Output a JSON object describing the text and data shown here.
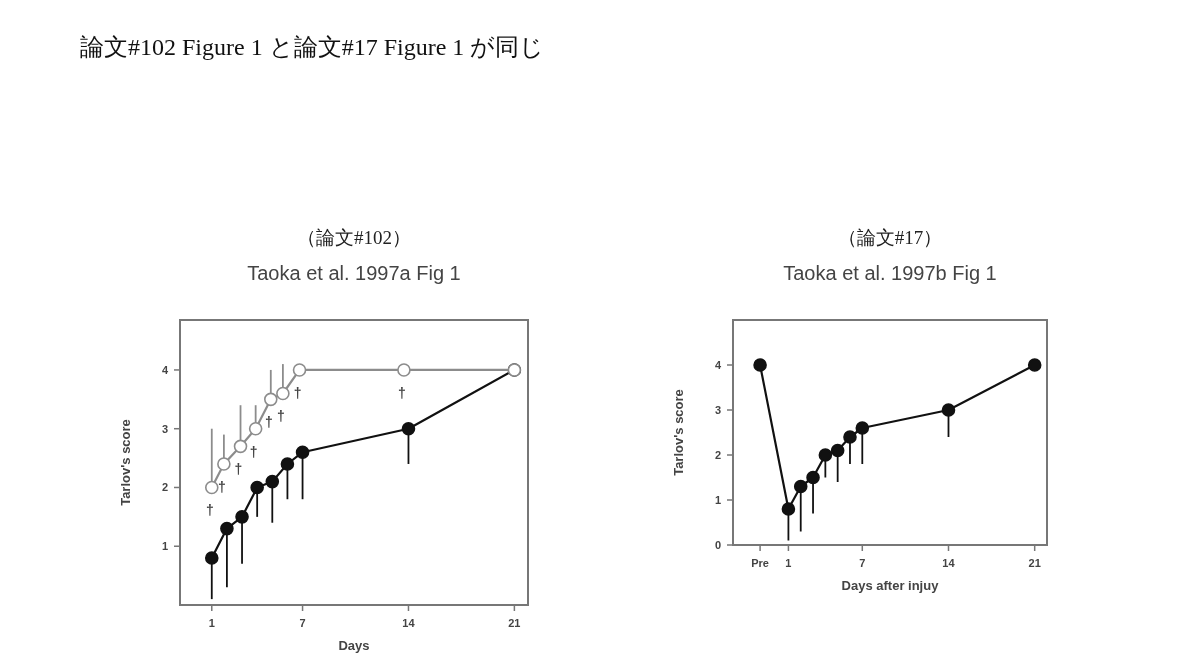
{
  "chart_data": [
    {
      "type": "line",
      "title": "Taoka et al. 1997a Fig 1",
      "subtitle": "（論文#102）",
      "xlabel": "Days",
      "ylabel": "Tarlov's score",
      "xlim": [
        -1.1,
        21.9
      ],
      "ylim": [
        0,
        4.85
      ],
      "xticks": [
        1,
        7,
        14,
        21
      ],
      "yticks": [
        1,
        2,
        3,
        4
      ],
      "marker": "circle",
      "series": [
        {
          "color": "#111111",
          "x": [
            1,
            2,
            3,
            4,
            5,
            6,
            7,
            14,
            21
          ],
          "values": [
            0.8,
            1.3,
            1.5,
            2.0,
            2.1,
            2.4,
            2.6,
            3.0,
            4.0
          ],
          "errors": [
            [
              0.1,
              0.8
            ],
            [
              0.3,
              1.3
            ],
            [
              0.7,
              1.5
            ],
            [
              1.5,
              2.0
            ],
            [
              1.4,
              2.1
            ],
            [
              1.8,
              2.4
            ],
            [
              1.8,
              2.6
            ],
            [
              2.4,
              3.0
            ],
            null
          ]
        },
        {
          "color": "#ffffff",
          "x": [
            1,
            1.8,
            2.9,
            3.9,
            4.9,
            5.7,
            6.8,
            13.7,
            21
          ],
          "values": [
            2.0,
            2.4,
            2.7,
            3.0,
            3.5,
            3.6,
            4.0,
            4.0,
            4.0
          ],
          "errors": [
            [
              2.0,
              3.0
            ],
            [
              2.4,
              2.9
            ],
            [
              2.7,
              3.4
            ],
            [
              3.0,
              3.4
            ],
            [
              3.5,
              4.0
            ],
            [
              3.6,
              4.1
            ],
            null,
            null,
            null
          ]
        }
      ],
      "annotations": [
        "論文#102 Figure 1 と論文#17 Figure 1 が同じ",
        {
          "text": "†",
          "x": 1,
          "y": 2.0
        },
        {
          "text": "†",
          "x": 1.8,
          "y": 2.4
        },
        {
          "text": "†",
          "x": 2.9,
          "y": 2.7
        },
        {
          "text": "†",
          "x": 3.9,
          "y": 3.0
        },
        {
          "text": "†",
          "x": 4.9,
          "y": 3.5
        },
        {
          "text": "†",
          "x": 5.7,
          "y": 3.6
        },
        {
          "text": "†",
          "x": 6.8,
          "y": 4.0
        },
        {
          "text": "†",
          "x": 13.7,
          "y": 4.0
        }
      ]
    },
    {
      "type": "line",
      "title": "Taoka et al. 1997b Fig 1",
      "subtitle": "（論文#17）",
      "xlabel": "Days after injuy",
      "ylabel": "Tarlov's score",
      "xlim": [
        -3.5,
        22
      ],
      "ylim": [
        0,
        5
      ],
      "xticks": [
        {
          "value": -1.3,
          "label": "Pre"
        },
        1,
        7,
        14,
        21
      ],
      "yticks": [
        0,
        1,
        2,
        3,
        4
      ],
      "marker": "circle",
      "series": [
        {
          "color": "#111111",
          "x": [
            -1.3,
            1,
            2,
            3,
            4,
            5,
            6,
            7,
            14,
            21
          ],
          "values": [
            4.0,
            0.8,
            1.3,
            1.5,
            2.0,
            2.1,
            2.4,
            2.6,
            3.0,
            4.0
          ],
          "errors": [
            null,
            [
              0.1,
              0.8
            ],
            [
              0.3,
              1.3
            ],
            [
              0.7,
              1.5
            ],
            [
              1.5,
              2.0
            ],
            [
              1.4,
              2.1
            ],
            [
              1.8,
              2.4
            ],
            [
              1.8,
              2.6
            ],
            [
              2.4,
              3.0
            ],
            null
          ]
        }
      ]
    }
  ]
}
